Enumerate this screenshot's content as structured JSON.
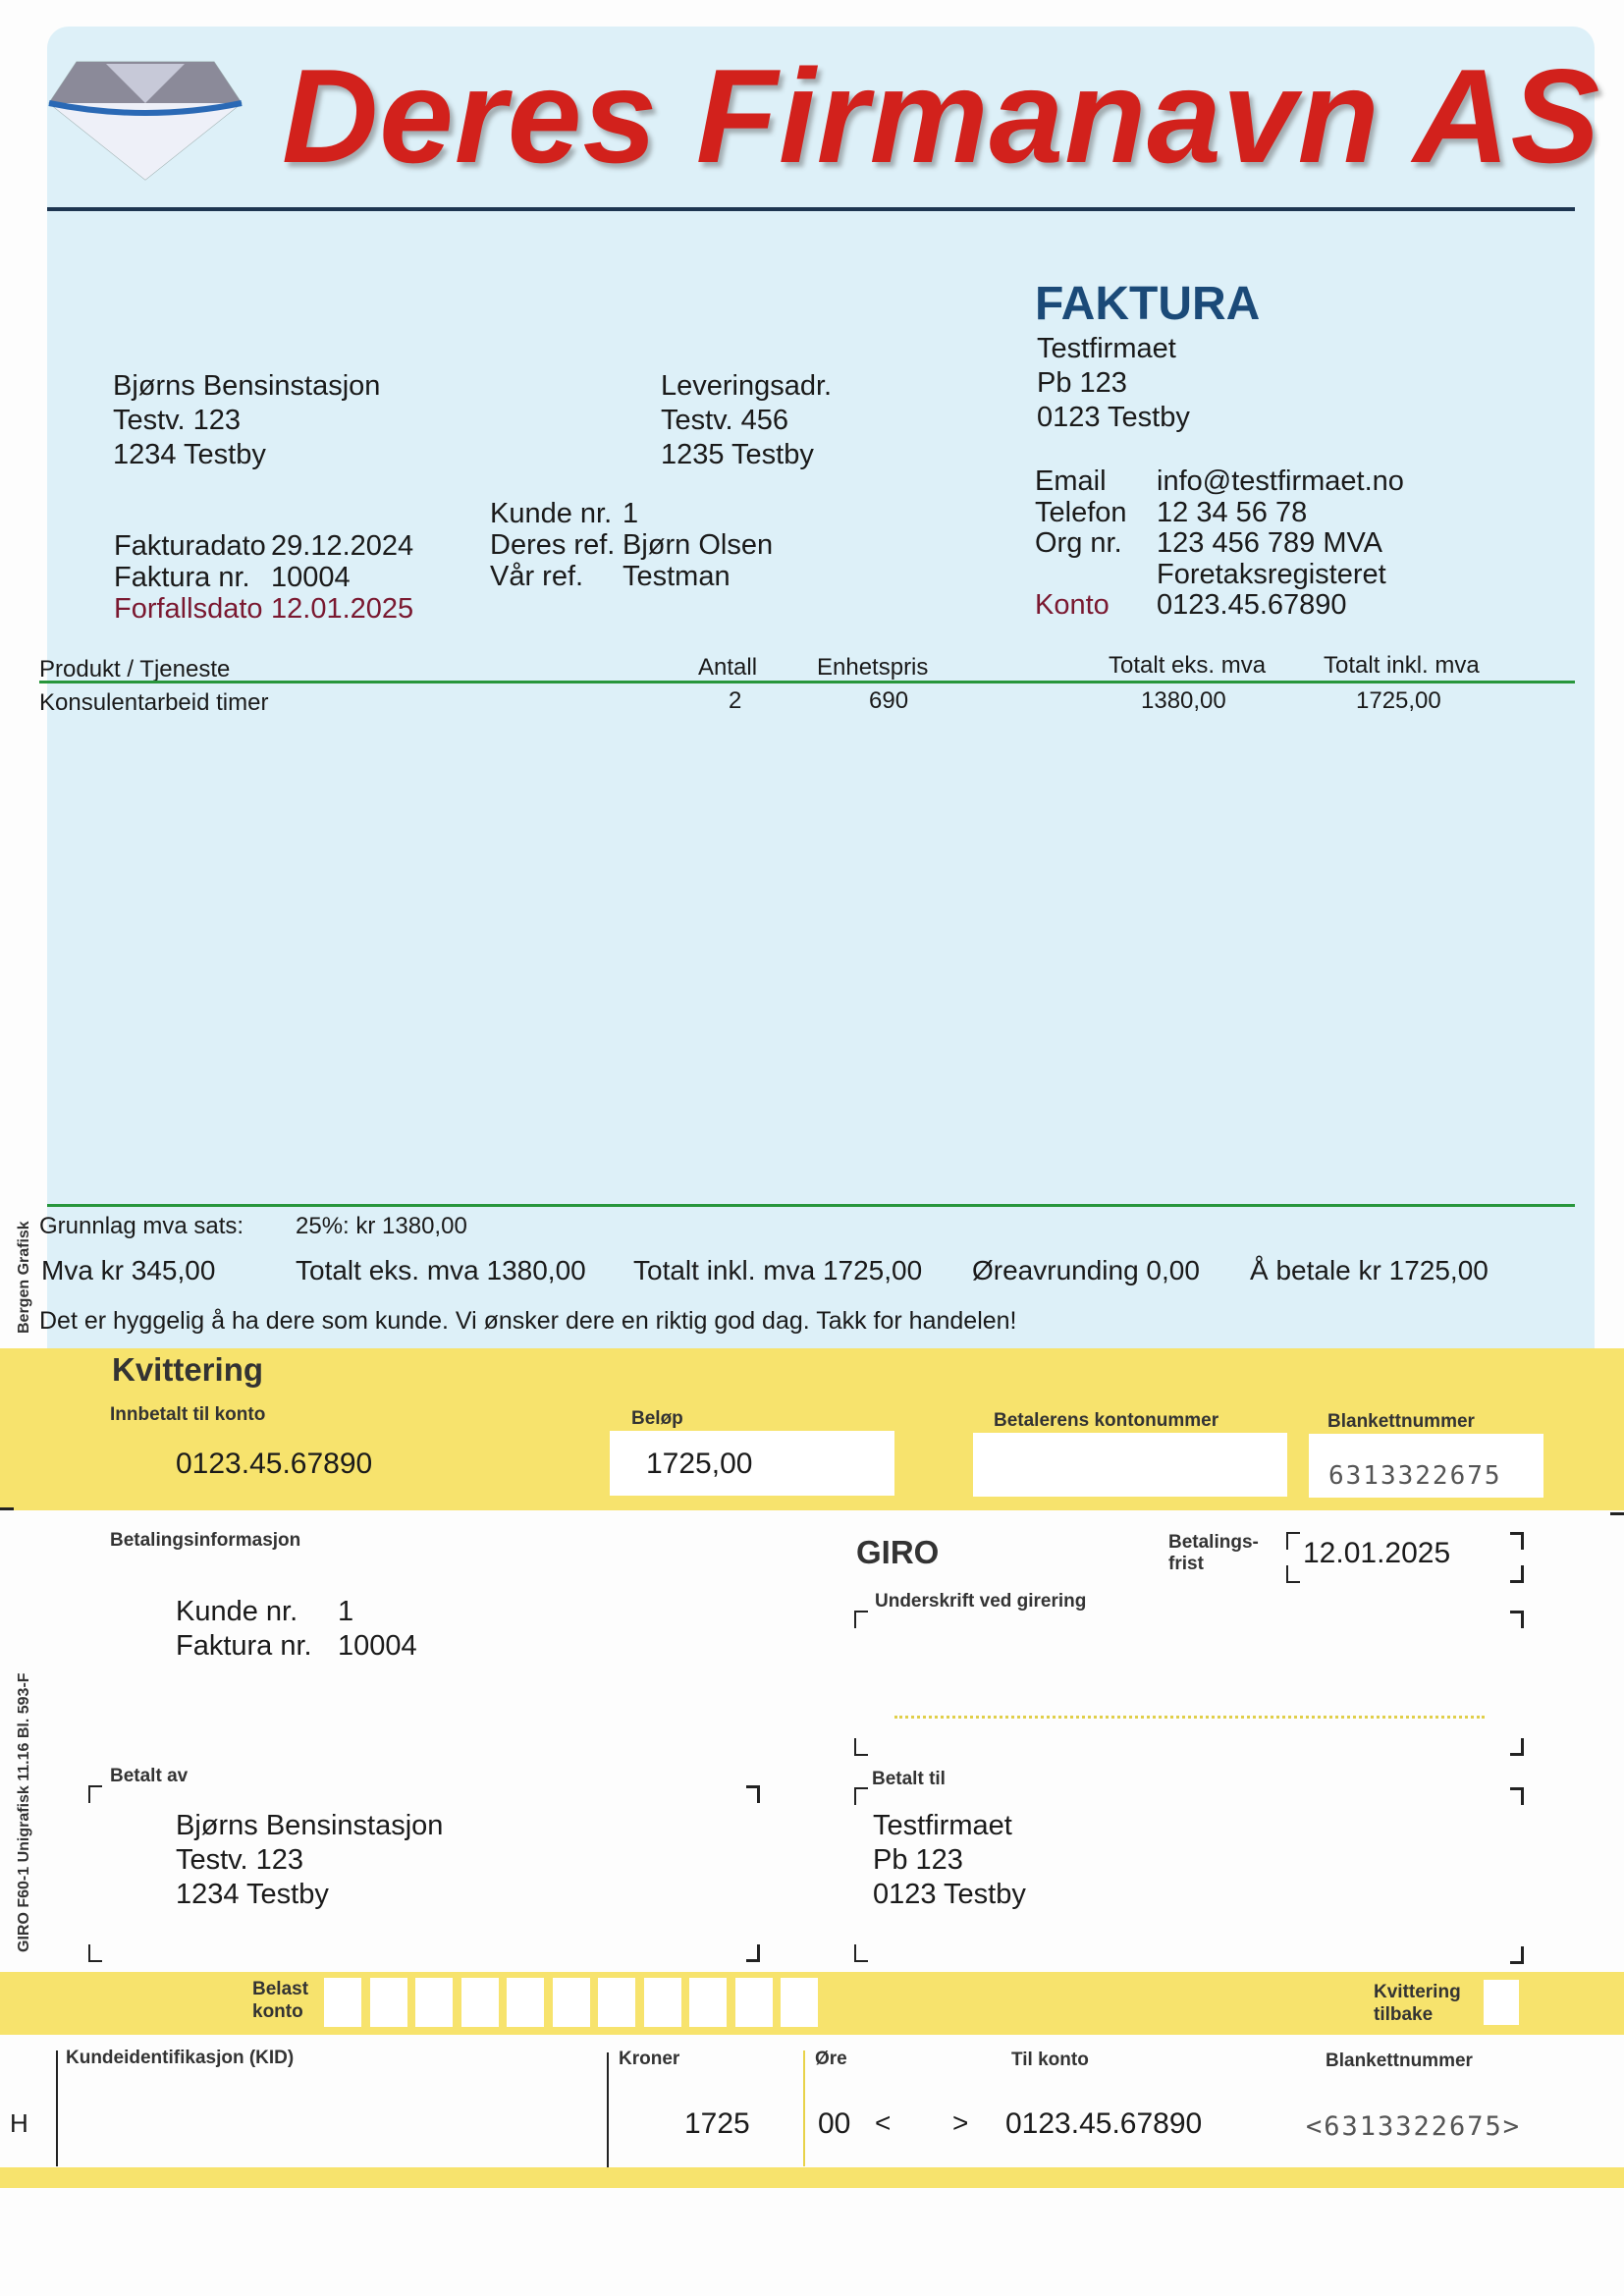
{
  "company": {
    "name": "Deres Firmanavn AS",
    "logo_icon": "diamond-icon",
    "title_color": "#d2211c"
  },
  "invoice": {
    "heading": "FAKTURA",
    "sender": [
      "Testfirmaet",
      "Pb 123",
      "0123 Testby"
    ],
    "customer": [
      "Bjørns Bensinstasjon",
      "Testv. 123",
      "1234 Testby"
    ],
    "delivery": [
      "Leveringsadr.",
      "Testv. 456",
      "1235 Testby"
    ],
    "refs": [
      {
        "label": "Kunde nr.",
        "value": "1"
      },
      {
        "label": "Deres ref.",
        "value": "Bjørn Olsen"
      },
      {
        "label": "Vår ref.",
        "value": "Testman"
      }
    ],
    "dates": [
      {
        "label": "Fakturadato",
        "value": "29.12.2024"
      },
      {
        "label": "Faktura nr.",
        "value": "10004"
      },
      {
        "label": "Forfallsdato",
        "value": "12.01.2025"
      }
    ],
    "contact": [
      {
        "label": "Email",
        "value": "info@testfirmaet.no"
      },
      {
        "label": "Telefon",
        "value": "12 34 56 78"
      },
      {
        "label": "Org nr.",
        "value": "123 456 789 MVA"
      },
      {
        "label": "",
        "value": "Foretaksregisteret"
      },
      {
        "label": "Konto",
        "value": "0123.45.67890"
      }
    ]
  },
  "table": {
    "headers": [
      "Produkt / Tjeneste",
      "Antall",
      "Enhetspris",
      "Totalt eks. mva",
      "Totalt inkl. mva"
    ],
    "rows": [
      [
        "Konsulentarbeid timer",
        "2",
        "690",
        "1380,00",
        "1725,00"
      ]
    ]
  },
  "summary": {
    "vat_basis_label": "Grunnlag mva sats:",
    "vat_basis_value": "25%: kr 1380,00",
    "mva": "Mva kr 345,00",
    "total_ex": "Totalt eks. mva 1380,00",
    "total_inc": "Totalt inkl. mva 1725,00",
    "rounding": "Øreavrunding 0,00",
    "to_pay": "Å betale kr 1725,00",
    "thanks": "Det er hyggelig å ha dere som kunde. Vi ønsker dere en riktig god dag. Takk for handelen!",
    "printer": "Bergen Grafisk"
  },
  "receipt": {
    "title": "Kvittering",
    "account_label": "Innbetalt til konto",
    "account": "0123.45.67890",
    "amount_label": "Beløp",
    "amount": "1725,00",
    "payer_account_label": "Betalerens kontonummer",
    "payer_account": "",
    "form_no_label": "Blankettnummer",
    "form_no": "6313322675"
  },
  "giro": {
    "payinfo_label": "Betalingsinformasjon",
    "payinfo": [
      {
        "label": "Kunde nr.",
        "value": "1"
      },
      {
        "label": "Faktura nr.",
        "value": "10004"
      }
    ],
    "title": "GIRO",
    "due_label_1": "Betalings-",
    "due_label_2": "frist",
    "due": "12.01.2025",
    "signature_label": "Underskrift ved girering",
    "paid_by_label": "Betalt av",
    "paid_by": [
      "Bjørns Bensinstasjon",
      "Testv. 123",
      "1234 Testby"
    ],
    "paid_to_label": "Betalt til",
    "paid_to": [
      "Testfirmaet",
      "Pb 123",
      "0123 Testby"
    ],
    "side_text": "GIRO F60-1  Unigrafisk  11.16  Bl. 593-F",
    "debit_label_1": "Belast",
    "debit_label_2": "konto",
    "receipt_back_1": "Kvittering",
    "receipt_back_2": "tilbake",
    "kid_label": "Kundeidentifikasjon (KID)",
    "kid": "",
    "kroner_label": "Kroner",
    "kroner": "1725",
    "ore_label": "Øre",
    "ore": "00",
    "lt": "<",
    "gt": ">",
    "to_account_label": "Til konto",
    "to_account": "0123.45.67890",
    "form_no_label": "Blankettnummer",
    "form_no": "<6313322675>",
    "h": "H"
  },
  "colors": {
    "panel": "#ddf0f8",
    "yellow": "#f7e36d",
    "faktura": "#1b4a78",
    "rule_green": "#27963c"
  }
}
